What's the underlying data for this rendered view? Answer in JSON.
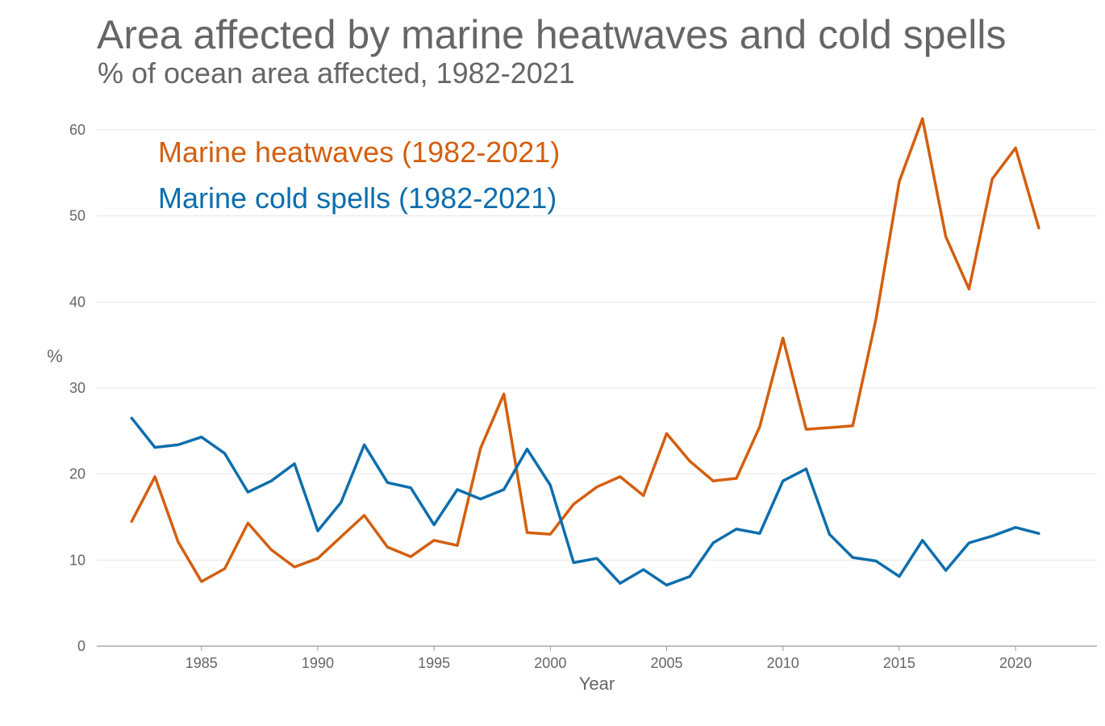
{
  "chart_data": {
    "type": "line",
    "title": "Area affected by marine heatwaves and cold spells",
    "subtitle": "% of ocean area affected, 1982-2021",
    "xlabel": "Year",
    "ylabel": "%",
    "xlim": [
      1980.5,
      2023.5
    ],
    "ylim": [
      0,
      60
    ],
    "xticks": [
      1985,
      1990,
      1995,
      2000,
      2005,
      2010,
      2015,
      2020
    ],
    "yticks": [
      0,
      10,
      20,
      30,
      40,
      50,
      60
    ],
    "grid": true,
    "legend_position": "top-left",
    "x": [
      1982,
      1983,
      1984,
      1985,
      1986,
      1987,
      1988,
      1989,
      1990,
      1991,
      1992,
      1993,
      1994,
      1995,
      1996,
      1997,
      1998,
      1999,
      2000,
      2001,
      2002,
      2003,
      2004,
      2005,
      2006,
      2007,
      2008,
      2009,
      2010,
      2011,
      2012,
      2013,
      2014,
      2015,
      2016,
      2017,
      2018,
      2019,
      2020,
      2021
    ],
    "series": [
      {
        "name": "Marine heatwaves (1982-2021)",
        "color": "#D35F0F",
        "values": [
          14.5,
          19.7,
          12.1,
          7.5,
          9.0,
          14.3,
          11.2,
          9.2,
          10.2,
          12.7,
          15.2,
          11.5,
          10.4,
          12.3,
          11.7,
          23.0,
          29.3,
          13.2,
          13.0,
          16.5,
          18.5,
          19.7,
          17.5,
          24.7,
          21.5,
          19.2,
          19.5,
          25.5,
          35.8,
          25.2,
          25.4,
          25.6,
          38.0,
          54.0,
          61.3,
          47.6,
          41.5,
          54.3,
          57.9,
          48.6
        ]
      },
      {
        "name": "Marine cold spells (1982-2021)",
        "color": "#0D6EAD",
        "values": [
          26.5,
          23.1,
          23.4,
          24.3,
          22.4,
          17.9,
          19.2,
          21.2,
          13.4,
          16.7,
          23.4,
          19.0,
          18.4,
          14.1,
          18.2,
          17.1,
          18.2,
          22.9,
          18.7,
          9.7,
          10.2,
          7.3,
          8.9,
          7.1,
          8.1,
          12.0,
          13.6,
          13.1,
          19.2,
          20.6,
          13.0,
          10.3,
          9.9,
          8.1,
          12.3,
          8.8,
          12.0,
          12.8,
          13.8,
          13.1
        ]
      }
    ]
  }
}
